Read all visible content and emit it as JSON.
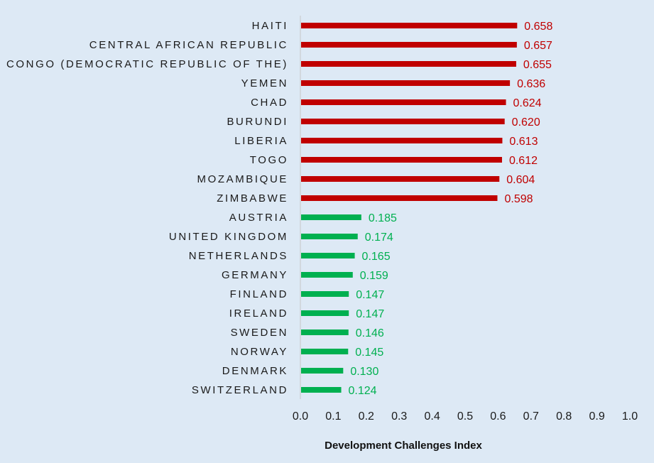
{
  "chart_data": {
    "type": "bar",
    "orientation": "horizontal",
    "title": "",
    "xlabel": "Development Challenges Index",
    "ylabel": "",
    "xlim": [
      0,
      1.0
    ],
    "x_ticks": [
      "0.0",
      "0.1",
      "0.2",
      "0.3",
      "0.4",
      "0.5",
      "0.6",
      "0.7",
      "0.8",
      "0.9",
      "1.0"
    ],
    "grid": false,
    "legend": "none",
    "categories": [
      "HAITI",
      "CENTRAL AFRICAN REPUBLIC",
      "CONGO (DEMOCRATIC REPUBLIC OF THE)",
      "YEMEN",
      "CHAD",
      "BURUNDI",
      "LIBERIA",
      "TOGO",
      "MOZAMBIQUE",
      "ZIMBABWE",
      "AUSTRIA",
      "UNITED KINGDOM",
      "NETHERLANDS",
      "GERMANY",
      "FINLAND",
      "IRELAND",
      "SWEDEN",
      "NORWAY",
      "DENMARK",
      "SWITZERLAND"
    ],
    "values": [
      0.658,
      0.657,
      0.655,
      0.636,
      0.624,
      0.62,
      0.613,
      0.612,
      0.604,
      0.598,
      0.185,
      0.174,
      0.165,
      0.159,
      0.147,
      0.147,
      0.146,
      0.145,
      0.13,
      0.124
    ],
    "value_labels": [
      "0.658",
      "0.657",
      "0.655",
      "0.636",
      "0.624",
      "0.620",
      "0.613",
      "0.612",
      "0.604",
      "0.598",
      "0.185",
      "0.174",
      "0.165",
      "0.159",
      "0.147",
      "0.147",
      "0.146",
      "0.145",
      "0.130",
      "0.124"
    ],
    "groups": [
      "high",
      "high",
      "high",
      "high",
      "high",
      "high",
      "high",
      "high",
      "high",
      "high",
      "low",
      "low",
      "low",
      "low",
      "low",
      "low",
      "low",
      "low",
      "low",
      "low"
    ],
    "colors": {
      "high": "#c00000",
      "low": "#00b050",
      "axis": "#c8c8c8",
      "background": "#dde9f5"
    }
  }
}
